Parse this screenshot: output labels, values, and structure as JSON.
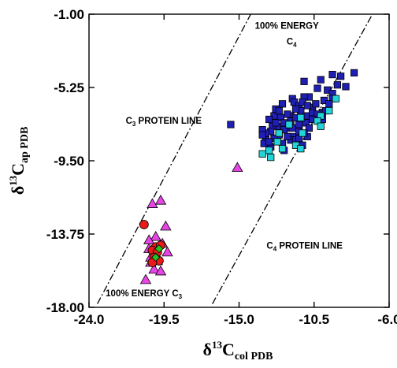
{
  "chart_data": {
    "type": "scatter",
    "xlim": [
      -24.0,
      -6.0
    ],
    "ylim": [
      -18.0,
      -1.0
    ],
    "x_ticks": [
      "-24.0",
      "-19.5",
      "-15.0",
      "-10.5",
      "-6.0"
    ],
    "y_ticks": [
      "-1.00",
      "-5.25",
      "-9.50",
      "-13.75",
      "-18.00"
    ],
    "x_tick_values": [
      -24.0,
      -19.5,
      -15.0,
      -10.5,
      -6.0
    ],
    "y_tick_values": [
      -1.0,
      -5.25,
      -9.5,
      -13.75,
      -18.0
    ],
    "xlabel": {
      "main": "δ",
      "sup": "13",
      "base": "C",
      "sub": "col PDB"
    },
    "ylabel": {
      "main": "δ",
      "sup": "13",
      "base": "C",
      "sub": "ap PDB"
    },
    "grid": false,
    "lines": [
      {
        "name": "C3 line",
        "x": [
          -23.5,
          -14.3
        ],
        "y": [
          -17.8,
          -1.0
        ]
      },
      {
        "name": "C4 line",
        "x": [
          -16.6,
          -7.0
        ],
        "y": [
          -17.8,
          -1.0
        ]
      }
    ],
    "annotations": [
      {
        "label": "100% ENERGY",
        "x": -14.05,
        "y": -1.85
      },
      {
        "label": "C",
        "sub": "4",
        "x": -12.15,
        "y": -2.75
      },
      {
        "label": "C",
        "sub": "3",
        "tail": " PROTEIN LINE",
        "x": -21.8,
        "y": -7.35
      },
      {
        "label": "C",
        "sub": "4",
        "tail": " PROTEIN LINE",
        "x": -13.35,
        "y": -14.6
      },
      {
        "label": "100% ENERGY C",
        "sub": "3",
        "x": -23.0,
        "y": -17.35
      }
    ],
    "series": [
      {
        "marker": "square",
        "color": "#1f1fb4",
        "points": [
          [
            -8.1,
            -4.4
          ],
          [
            -8.9,
            -4.6
          ],
          [
            -9.4,
            -4.5
          ],
          [
            -10.1,
            -4.8
          ],
          [
            -11.1,
            -4.9
          ],
          [
            -8.6,
            -5.2
          ],
          [
            -9.1,
            -5.1
          ],
          [
            -9.7,
            -5.4
          ],
          [
            -9.4,
            -5.6
          ],
          [
            -10.3,
            -5.3
          ],
          [
            -10.8,
            -5.8
          ],
          [
            -11.1,
            -5.8
          ],
          [
            -11.8,
            -5.9
          ],
          [
            -11.7,
            -6.1
          ],
          [
            -12.4,
            -6.2
          ],
          [
            -12.8,
            -6.5
          ],
          [
            -11.4,
            -6.3
          ],
          [
            -10.6,
            -6.4
          ],
          [
            -10.0,
            -6.7
          ],
          [
            -10.4,
            -6.2
          ],
          [
            -9.9,
            -6.0
          ],
          [
            -9.4,
            -5.9
          ],
          [
            -9.6,
            -6.2
          ],
          [
            -11.9,
            -6.9
          ],
          [
            -12.9,
            -6.9
          ],
          [
            -13.2,
            -7.1
          ],
          [
            -13.0,
            -7.5
          ],
          [
            -12.5,
            -7.0
          ],
          [
            -11.9,
            -7.2
          ],
          [
            -11.6,
            -7.0
          ],
          [
            -11.3,
            -6.6
          ],
          [
            -10.9,
            -6.9
          ],
          [
            -10.6,
            -6.7
          ],
          [
            -10.3,
            -6.8
          ],
          [
            -10.6,
            -7.1
          ],
          [
            -11.0,
            -7.3
          ],
          [
            -12.1,
            -7.6
          ],
          [
            -12.6,
            -7.5
          ],
          [
            -13.1,
            -7.8
          ],
          [
            -13.4,
            -7.9
          ],
          [
            -12.6,
            -8.0
          ],
          [
            -12.3,
            -7.7
          ],
          [
            -11.8,
            -7.6
          ],
          [
            -11.4,
            -7.8
          ],
          [
            -13.4,
            -8.3
          ],
          [
            -12.4,
            -8.5
          ],
          [
            -12.9,
            -8.2
          ],
          [
            -11.8,
            -8.1
          ],
          [
            -13.1,
            -8.7
          ],
          [
            -11.9,
            -8.3
          ],
          [
            -10.9,
            -8.1
          ],
          [
            -15.5,
            -7.4
          ],
          [
            -12.6,
            -6.6
          ],
          [
            -12.1,
            -6.8
          ],
          [
            -11.6,
            -6.5
          ],
          [
            -11.2,
            -6.1
          ],
          [
            -10.9,
            -6.3
          ],
          [
            -12.3,
            -7.3
          ],
          [
            -11.4,
            -7.4
          ],
          [
            -10.8,
            -7.6
          ],
          [
            -10.0,
            -7.1
          ],
          [
            -9.8,
            -6.6
          ],
          [
            -12.8,
            -7.3
          ],
          [
            -13.6,
            -7.7
          ],
          [
            -13.5,
            -8.5
          ],
          [
            -12.3,
            -8.9
          ],
          [
            -11.6,
            -8.3
          ],
          [
            -11.2,
            -8.6
          ],
          [
            -13.6,
            -8.0
          ],
          [
            -13.2,
            -8.4
          ],
          [
            -12.1,
            -8.1
          ],
          [
            -11.1,
            -7.9
          ],
          [
            -11.4,
            -8.2
          ]
        ]
      },
      {
        "marker": "square",
        "color": "#22d3d8",
        "points": [
          [
            -9.2,
            -5.9
          ],
          [
            -9.6,
            -6.6
          ],
          [
            -10.1,
            -6.9
          ],
          [
            -10.3,
            -7.2
          ],
          [
            -11.3,
            -7.0
          ],
          [
            -12.0,
            -7.4
          ],
          [
            -11.2,
            -7.9
          ],
          [
            -12.7,
            -8.4
          ],
          [
            -12.4,
            -8.8
          ],
          [
            -11.6,
            -8.6
          ],
          [
            -11.3,
            -8.8
          ],
          [
            -13.1,
            -9.3
          ],
          [
            -13.6,
            -9.1
          ],
          [
            -13.2,
            -8.9
          ],
          [
            -12.6,
            -7.9
          ],
          [
            -10.1,
            -7.5
          ]
        ]
      },
      {
        "marker": "triangle",
        "color": "#e545e5",
        "points": [
          [
            -15.1,
            -9.9
          ],
          [
            -20.2,
            -12.0
          ],
          [
            -19.7,
            -11.8
          ],
          [
            -19.4,
            -13.3
          ],
          [
            -20.0,
            -13.9
          ],
          [
            -19.6,
            -14.3
          ],
          [
            -20.4,
            -14.6
          ],
          [
            -19.3,
            -14.8
          ],
          [
            -20.3,
            -15.1
          ],
          [
            -20.3,
            -15.4
          ],
          [
            -20.1,
            -15.8
          ],
          [
            -19.7,
            -15.9
          ],
          [
            -20.6,
            -16.4
          ],
          [
            -20.4,
            -14.1
          ],
          [
            -19.9,
            -15.3
          ]
        ]
      },
      {
        "marker": "circle",
        "color": "#e81a1a",
        "points": [
          [
            -20.7,
            -13.2
          ],
          [
            -20.0,
            -14.5
          ],
          [
            -19.7,
            -14.4
          ],
          [
            -20.2,
            -14.7
          ],
          [
            -19.9,
            -14.8
          ],
          [
            -20.1,
            -15.1
          ],
          [
            -19.8,
            -15.3
          ],
          [
            -20.2,
            -15.4
          ]
        ]
      },
      {
        "marker": "diamond",
        "color": "#22c422",
        "points": [
          [
            -19.8,
            -14.6
          ],
          [
            -20.0,
            -15.1
          ]
        ]
      }
    ]
  }
}
